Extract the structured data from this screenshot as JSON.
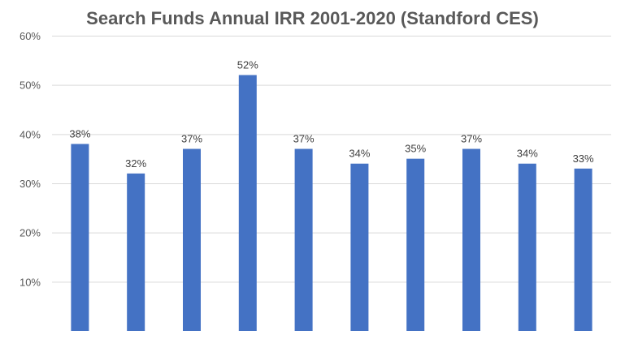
{
  "chart_data": {
    "type": "bar",
    "title": "Search Funds Annual IRR 2001-2020 (Standford CES)",
    "xlabel": "",
    "ylabel": "",
    "categories": [
      "",
      "",
      "",
      "",
      "",
      "",
      "",
      "",
      "",
      ""
    ],
    "values": [
      38,
      32,
      37,
      52,
      37,
      34,
      35,
      37,
      34,
      33
    ],
    "data_labels": [
      "38%",
      "32%",
      "37%",
      "52%",
      "37%",
      "34%",
      "35%",
      "37%",
      "34%",
      "33%"
    ],
    "ylim": [
      0,
      60
    ],
    "y_ticks": [
      10,
      20,
      30,
      40,
      50,
      60
    ],
    "y_tick_labels": [
      "10%",
      "20%",
      "30%",
      "40%",
      "50%",
      "60%"
    ],
    "grid": true,
    "legend": "none",
    "bar_color": "#4472c4"
  }
}
